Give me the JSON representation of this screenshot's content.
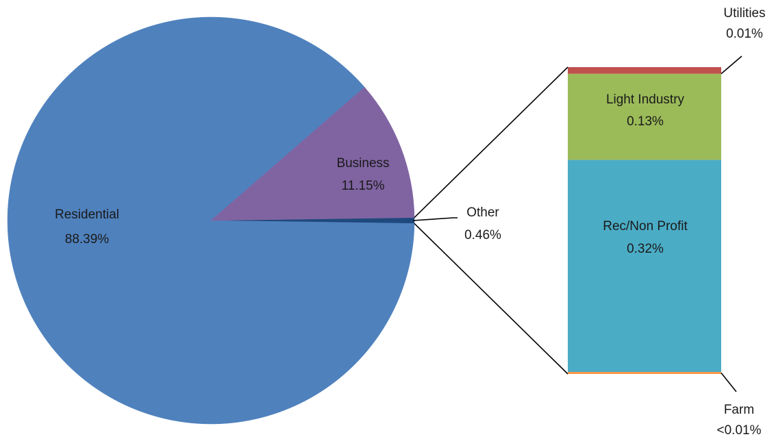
{
  "chart_data": {
    "type": "bar-of-pie",
    "pie": {
      "slices": [
        {
          "name": "Residential",
          "value": 88.39,
          "label": "88.39%",
          "color": "#4f81bd"
        },
        {
          "name": "Business",
          "value": 11.15,
          "label": "11.15%",
          "color": "#8064a2"
        },
        {
          "name": "Other",
          "value": 0.46,
          "label": "0.46%",
          "color": "#1f497d"
        }
      ]
    },
    "bar": {
      "source_slice": "Other",
      "segments": [
        {
          "name": "Farm",
          "value": 0.002,
          "label": "<0.01%",
          "color": "#f79646"
        },
        {
          "name": "Rec/Non Profit",
          "value": 0.32,
          "label": "0.32%",
          "color": "#4bacc6"
        },
        {
          "name": "Light Industry",
          "value": 0.13,
          "label": "0.13%",
          "color": "#9bbb59"
        },
        {
          "name": "Utilities",
          "value": 0.01,
          "label": "0.01%",
          "color": "#c0504d"
        }
      ]
    },
    "legend": "none",
    "title": ""
  }
}
